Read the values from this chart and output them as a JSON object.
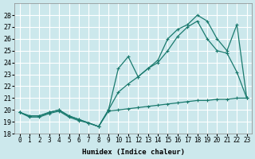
{
  "xlabel": "Humidex (Indice chaleur)",
  "bg_color": "#cce8ec",
  "grid_color": "#ffffff",
  "line_color": "#1a7a6e",
  "xlim": [
    -0.5,
    23.5
  ],
  "ylim": [
    18,
    29
  ],
  "yticks": [
    18,
    19,
    20,
    21,
    22,
    23,
    24,
    25,
    26,
    27,
    28
  ],
  "xticks": [
    0,
    1,
    2,
    3,
    4,
    5,
    6,
    7,
    8,
    9,
    10,
    11,
    12,
    13,
    14,
    15,
    16,
    17,
    18,
    19,
    20,
    21,
    22,
    23
  ],
  "line1_x": [
    0,
    1,
    2,
    3,
    4,
    5,
    6,
    7,
    8,
    9,
    10,
    11,
    12,
    13,
    14,
    15,
    16,
    17,
    18,
    19,
    20,
    21,
    22,
    23
  ],
  "line1_y": [
    19.8,
    19.4,
    19.4,
    19.7,
    19.9,
    19.4,
    19.1,
    18.9,
    18.6,
    19.9,
    20.0,
    20.1,
    20.2,
    20.3,
    20.4,
    20.5,
    20.6,
    20.7,
    20.8,
    20.8,
    20.9,
    20.9,
    21.0,
    21.0
  ],
  "line2_x": [
    0,
    1,
    2,
    3,
    4,
    5,
    6,
    7,
    8,
    9,
    10,
    11,
    12,
    13,
    14,
    15,
    16,
    17,
    18,
    19,
    20,
    21,
    22,
    23
  ],
  "line2_y": [
    19.8,
    19.5,
    19.5,
    19.8,
    20.0,
    19.5,
    19.2,
    18.9,
    18.6,
    20.0,
    21.5,
    22.2,
    22.8,
    23.5,
    24.0,
    25.0,
    26.2,
    27.0,
    27.5,
    26.0,
    25.0,
    24.8,
    23.2,
    21.0
  ],
  "line3_x": [
    0,
    1,
    2,
    3,
    4,
    5,
    6,
    7,
    8,
    9,
    10,
    11,
    12,
    13,
    14,
    15,
    16,
    17,
    18,
    19,
    20,
    21,
    22,
    23
  ],
  "line3_y": [
    19.8,
    19.5,
    19.5,
    19.8,
    20.0,
    19.5,
    19.2,
    18.9,
    18.6,
    20.0,
    23.5,
    24.5,
    22.8,
    23.5,
    24.2,
    26.0,
    26.8,
    27.2,
    28.0,
    27.5,
    26.0,
    25.0,
    27.2,
    21.0
  ]
}
